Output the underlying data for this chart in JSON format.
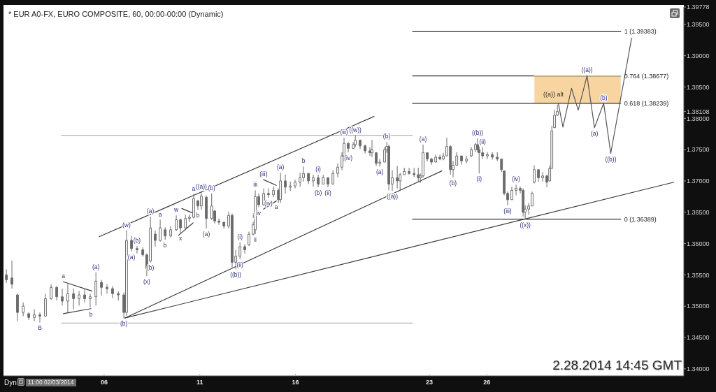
{
  "chart_data": {
    "type": "candlestick",
    "title": "* EUR A0-FX, EURO COMPOSITE, 60, 00:00-00:00 (Dynamic)",
    "color": "#6b6b6b",
    "xlim": [
      0.74,
      36.3
    ],
    "xticks": [
      {
        "value": 6,
        "label": "06"
      },
      11,
      16,
      23,
      26
    ],
    "ylim": [
      1.33886,
      1.39778
    ],
    "yticks": [
      {
        "value": 1.34,
        "label": "1.34000"
      },
      {
        "value": 1.345,
        "label": "1.34500"
      },
      {
        "value": 1.35,
        "label": "1.35000"
      },
      {
        "value": 1.355,
        "label": "1.35500"
      },
      {
        "value": 1.36,
        "label": "1.36000"
      },
      {
        "value": 1.365,
        "label": "1.36500"
      },
      {
        "value": 1.37,
        "label": "1.37000"
      },
      {
        "value": 1.375,
        "label": "1.37500"
      },
      {
        "value": 1.38,
        "label": "1.38000"
      },
      1.38108,
      {
        "value": 1.385,
        "label": "1.38500"
      },
      {
        "value": 1.39,
        "label": "1.39000"
      },
      {
        "value": 1.395,
        "label": "1.39500"
      },
      1.39778
    ],
    "x": [
      0.89,
      1.18,
      1.47,
      1.77,
      2.06,
      2.35,
      2.64,
      2.93,
      3.23,
      3.52,
      3.81,
      4.1,
      4.4,
      4.69,
      4.98,
      5.27,
      5.57,
      5.86,
      6.15,
      6.44,
      6.74,
      7.03,
      7.17,
      7.43,
      7.72,
      8.02,
      8.23,
      8.42,
      8.67,
      8.93,
      9.19,
      9.48,
      9.77,
      9.99,
      10.25,
      10.46,
      10.68,
      10.9,
      11.08,
      11.34,
      11.62,
      11.78,
      12,
      12.26,
      12.51,
      12.69,
      12.88,
      13.1,
      13.35,
      13.57,
      13.79,
      13.9,
      14.08,
      14.34,
      14.59,
      14.85,
      15.11,
      15.22,
      15.47,
      15.73,
      15.98,
      16.24,
      16.42,
      16.68,
      16.93,
      17.19,
      17.45,
      17.7,
      17.96,
      18.21,
      18.43,
      18.54,
      18.76,
      19.02,
      19.13,
      19.38,
      19.64,
      19.89,
      20,
      20.22,
      20.41,
      20.66,
      20.77,
      20.88,
      21.06,
      21.32,
      21.47,
      21.69,
      21.94,
      22.2,
      22.42,
      22.53,
      22.67,
      22.89,
      23.11,
      23.33,
      23.55,
      23.73,
      23.91,
      24.1,
      24.24,
      24.43,
      24.68,
      24.94,
      25.19,
      25.41,
      25.52,
      25.6,
      25.78,
      26.03,
      26.29,
      26.55,
      26.77,
      26.91,
      27.09,
      27.31,
      27.53,
      27.75,
      27.9,
      28.01,
      28.19,
      28.37,
      28.48,
      28.7,
      28.92,
      29.14,
      29.29,
      29.4,
      29.54,
      29.69
    ],
    "ohlc": [
      [
        1.355,
        1.3559,
        1.3537,
        1.3542
      ],
      [
        1.3545,
        1.3573,
        1.3528,
        1.3535
      ],
      [
        1.3518,
        1.352,
        1.3476,
        1.349
      ],
      [
        1.349,
        1.3506,
        1.3484,
        1.35
      ],
      [
        1.3488,
        1.349,
        1.3478,
        1.3482
      ],
      [
        1.3482,
        1.3495,
        1.3476,
        1.3486
      ],
      [
        1.3486,
        1.349,
        1.3474,
        1.3484
      ],
      [
        1.3484,
        1.352,
        1.3484,
        1.3512
      ],
      [
        1.3512,
        1.3535,
        1.351,
        1.353
      ],
      [
        1.353,
        1.3532,
        1.3509,
        1.3515
      ],
      [
        1.3515,
        1.3528,
        1.3501,
        1.3508
      ],
      [
        1.3508,
        1.3535,
        1.349,
        1.352
      ],
      [
        1.352,
        1.3528,
        1.3495,
        1.3512
      ],
      [
        1.3512,
        1.3524,
        1.3501,
        1.3518
      ],
      [
        1.3518,
        1.3528,
        1.3506,
        1.3512
      ],
      [
        1.3512,
        1.352,
        1.3498,
        1.3515
      ],
      [
        1.3515,
        1.3554,
        1.3501,
        1.354
      ],
      [
        1.3538,
        1.3542,
        1.3517,
        1.353
      ],
      [
        1.353,
        1.3535,
        1.352,
        1.3528
      ],
      [
        1.3528,
        1.3532,
        1.3513,
        1.352
      ],
      [
        1.352,
        1.3524,
        1.3509,
        1.3518
      ],
      [
        1.3518,
        1.3522,
        1.3481,
        1.349
      ],
      [
        1.349,
        1.3621,
        1.3485,
        1.3605
      ],
      [
        1.3605,
        1.3612,
        1.3587,
        1.3592
      ],
      [
        1.3592,
        1.3596,
        1.3584,
        1.359
      ],
      [
        1.359,
        1.3594,
        1.3579,
        1.3582
      ],
      [
        1.3582,
        1.3584,
        1.3548,
        1.356
      ],
      [
        1.3572,
        1.3643,
        1.357,
        1.3625
      ],
      [
        1.3615,
        1.3621,
        1.3595,
        1.3605
      ],
      [
        1.3605,
        1.3638,
        1.3603,
        1.3625
      ],
      [
        1.3622,
        1.3626,
        1.3606,
        1.3612
      ],
      [
        1.3612,
        1.3628,
        1.361,
        1.3622
      ],
      [
        1.3622,
        1.3645,
        1.362,
        1.3638
      ],
      [
        1.3638,
        1.364,
        1.3617,
        1.3625
      ],
      [
        1.3625,
        1.3646,
        1.3624,
        1.364
      ],
      [
        1.364,
        1.3646,
        1.3634,
        1.3642
      ],
      [
        1.3642,
        1.3679,
        1.364,
        1.3672
      ],
      [
        1.3668,
        1.367,
        1.3654,
        1.366
      ],
      [
        1.366,
        1.3682,
        1.3654,
        1.3676
      ],
      [
        1.3674,
        1.3677,
        1.3624,
        1.364
      ],
      [
        1.364,
        1.368,
        1.3638,
        1.366
      ],
      [
        1.3652,
        1.3654,
        1.3632,
        1.3636
      ],
      [
        1.3636,
        1.364,
        1.363,
        1.3634
      ],
      [
        1.3634,
        1.3635,
        1.3624,
        1.3628
      ],
      [
        1.3628,
        1.3651,
        1.3624,
        1.3645
      ],
      [
        1.3645,
        1.3648,
        1.3562,
        1.357
      ],
      [
        1.357,
        1.359,
        1.3559,
        1.358
      ],
      [
        1.358,
        1.3602,
        1.3575,
        1.3595
      ],
      [
        1.3595,
        1.3599,
        1.3584,
        1.359
      ],
      [
        1.3598,
        1.3619,
        1.3596,
        1.3615
      ],
      [
        1.3615,
        1.3635,
        1.3613,
        1.363
      ],
      [
        1.3622,
        1.3685,
        1.3615,
        1.3675
      ],
      [
        1.3675,
        1.368,
        1.3658,
        1.3662
      ],
      [
        1.3662,
        1.3688,
        1.366,
        1.368
      ],
      [
        1.368,
        1.3688,
        1.3673,
        1.3678
      ],
      [
        1.3678,
        1.3691,
        1.3674,
        1.3685
      ],
      [
        1.3685,
        1.3688,
        1.3665,
        1.367
      ],
      [
        1.367,
        1.3713,
        1.3665,
        1.37
      ],
      [
        1.37,
        1.371,
        1.368,
        1.369
      ],
      [
        1.369,
        1.3699,
        1.3684,
        1.3692
      ],
      [
        1.3692,
        1.3702,
        1.3688,
        1.3698
      ],
      [
        1.3698,
        1.3713,
        1.3691,
        1.3705
      ],
      [
        1.3705,
        1.3723,
        1.3699,
        1.3712
      ],
      [
        1.3712,
        1.3713,
        1.3695,
        1.37
      ],
      [
        1.37,
        1.371,
        1.3691,
        1.3705
      ],
      [
        1.3705,
        1.371,
        1.369,
        1.3695
      ],
      [
        1.3695,
        1.371,
        1.3695,
        1.3705
      ],
      [
        1.3705,
        1.3706,
        1.369,
        1.3695
      ],
      [
        1.3695,
        1.3717,
        1.3695,
        1.3712
      ],
      [
        1.3712,
        1.3728,
        1.3706,
        1.3722
      ],
      [
        1.3722,
        1.3746,
        1.3717,
        1.374
      ],
      [
        1.374,
        1.3769,
        1.3732,
        1.376
      ],
      [
        1.376,
        1.3762,
        1.3746,
        1.3752
      ],
      [
        1.3752,
        1.3762,
        1.3751,
        1.3758
      ],
      [
        1.3758,
        1.3773,
        1.3754,
        1.3765
      ],
      [
        1.3765,
        1.3766,
        1.3751,
        1.3756
      ],
      [
        1.3756,
        1.3758,
        1.3744,
        1.3748
      ],
      [
        1.3748,
        1.3754,
        1.374,
        1.3745
      ],
      [
        1.3745,
        1.3765,
        1.3738,
        1.375
      ],
      [
        1.3745,
        1.3746,
        1.3724,
        1.3728
      ],
      [
        1.3728,
        1.3735,
        1.3723,
        1.373
      ],
      [
        1.373,
        1.3754,
        1.373,
        1.375
      ],
      [
        1.375,
        1.3762,
        1.3745,
        1.3755
      ],
      [
        1.3755,
        1.3758,
        1.3685,
        1.3695
      ],
      [
        1.3695,
        1.3717,
        1.3684,
        1.3705
      ],
      [
        1.3705,
        1.3724,
        1.3688,
        1.37
      ],
      [
        1.37,
        1.3713,
        1.3684,
        1.371
      ],
      [
        1.371,
        1.3721,
        1.371,
        1.3715
      ],
      [
        1.3715,
        1.3721,
        1.371,
        1.3712
      ],
      [
        1.3712,
        1.3721,
        1.3706,
        1.371
      ],
      [
        1.371,
        1.3721,
        1.3699,
        1.3705
      ],
      [
        1.3705,
        1.3712,
        1.3697,
        1.3708
      ],
      [
        1.3708,
        1.3758,
        1.3705,
        1.3745
      ],
      [
        1.3745,
        1.3745,
        1.3731,
        1.3735
      ],
      [
        1.3735,
        1.3737,
        1.3726,
        1.373
      ],
      [
        1.373,
        1.3742,
        1.373,
        1.3738
      ],
      [
        1.3738,
        1.3742,
        1.3733,
        1.3735
      ],
      [
        1.3735,
        1.3745,
        1.3733,
        1.374
      ],
      [
        1.374,
        1.3769,
        1.374,
        1.3755
      ],
      [
        1.3755,
        1.3757,
        1.371,
        1.3718
      ],
      [
        1.3718,
        1.3732,
        1.3706,
        1.3725
      ],
      [
        1.3725,
        1.3746,
        1.3725,
        1.374
      ],
      [
        1.374,
        1.374,
        1.3726,
        1.3732
      ],
      [
        1.3732,
        1.374,
        1.3728,
        1.3735
      ],
      [
        1.374,
        1.3754,
        1.3738,
        1.375
      ],
      [
        1.375,
        1.3761,
        1.3746,
        1.3758
      ],
      [
        1.3758,
        1.3768,
        1.3746,
        1.375
      ],
      [
        1.375,
        1.3755,
        1.3712,
        1.3745
      ],
      [
        1.3745,
        1.3754,
        1.3735,
        1.374
      ],
      [
        1.374,
        1.3746,
        1.3735,
        1.3742
      ],
      [
        1.3742,
        1.3746,
        1.3734,
        1.3738
      ],
      [
        1.3738,
        1.3746,
        1.3732,
        1.3735
      ],
      [
        1.3735,
        1.3735,
        1.3714,
        1.3718
      ],
      [
        1.3716,
        1.3716,
        1.3677,
        1.368
      ],
      [
        1.368,
        1.3683,
        1.3661,
        1.367
      ],
      [
        1.367,
        1.3691,
        1.367,
        1.3685
      ],
      [
        1.3685,
        1.3694,
        1.3677,
        1.3688
      ],
      [
        1.3688,
        1.3691,
        1.368,
        1.3685
      ],
      [
        1.3685,
        1.3688,
        1.3643,
        1.365
      ],
      [
        1.365,
        1.3661,
        1.36389,
        1.3655
      ],
      [
        1.3655,
        1.3665,
        1.3646,
        1.366
      ],
      [
        1.366,
        1.3683,
        1.366,
        1.368
      ],
      [
        1.3698,
        1.3725,
        1.3696,
        1.3718
      ],
      [
        1.3718,
        1.3718,
        1.3699,
        1.3705
      ],
      [
        1.3705,
        1.3714,
        1.3699,
        1.3708
      ],
      [
        1.3708,
        1.371,
        1.369,
        1.3698
      ],
      [
        1.37,
        1.3725,
        1.3699,
        1.372
      ],
      [
        1.372,
        1.3788,
        1.372,
        1.378
      ],
      [
        1.3785,
        1.3814,
        1.3785,
        1.3805
      ],
      [
        1.3805,
        1.3822,
        1.3804,
        1.38108
      ]
    ],
    "series": [
      {
        "type": "line",
        "x": [
          3.76,
          22.12
        ],
        "values": [
          1.3773,
          1.3773
        ],
        "color": "#b3b3b3"
      },
      {
        "type": "line",
        "x": [
          3.76,
          22.12
        ],
        "values": [
          1.3473,
          1.3473
        ],
        "color": "#b3b3b3"
      },
      {
        "type": "line",
        "x": [
          5.74,
          20.11
        ],
        "values": [
          1.3611,
          1.3803
        ],
        "color": "#3a3a3a"
      },
      {
        "type": "line",
        "x": [
          7.08,
          23.65
        ],
        "values": [
          1.3481,
          1.3716
        ],
        "color": "#3a3a3a"
      },
      {
        "type": "line",
        "x": [
          7.08,
          35.78
        ],
        "values": [
          1.3481,
          1.3698
        ],
        "color": "#3a3a3a"
      },
      {
        "type": "line",
        "x": [
          3.87,
          5.37
        ],
        "values": [
          1.3539,
          1.3524
        ],
        "color": "#3a3a3a"
      },
      {
        "type": "line",
        "x": [
          3.87,
          5.31
        ],
        "values": [
          1.3488,
          1.3496
        ],
        "color": "#3a3a3a"
      },
      {
        "type": "line",
        "x": [
          10.06,
          10.61
        ],
        "values": [
          1.3656,
          1.3649
        ],
        "color": "#3a3a3a"
      },
      {
        "type": "line",
        "x": [
          9.88,
          10.65
        ],
        "values": [
          1.3613,
          1.3633
        ],
        "color": "#3a3a3a"
      },
      {
        "type": "line",
        "x": [
          14.33,
          15
        ],
        "values": [
          1.3702,
          1.3693
        ],
        "color": "#3a3a3a"
      },
      {
        "type": "line",
        "x": [
          14.33,
          15
        ],
        "values": [
          1.3655,
          1.3668
        ],
        "color": "#3a3a3a"
      },
      {
        "type": "line",
        "name": "1 (1.39383)",
        "x": [
          22.12,
          33
        ],
        "values": [
          1.39383,
          1.39383
        ],
        "color": "#333333"
      },
      {
        "type": "line",
        "name": "0.764 (1.38677)",
        "x": [
          22.12,
          33
        ],
        "values": [
          1.38677,
          1.38677
        ],
        "color": "#333333"
      },
      {
        "type": "line",
        "name": "0.618 (1.38239)",
        "x": [
          22.12,
          33
        ],
        "values": [
          1.38239,
          1.38239
        ],
        "color": "#333333"
      },
      {
        "type": "line",
        "name": "0 (1.36389)",
        "x": [
          22.12,
          33
        ],
        "values": [
          1.36389,
          1.36389
        ],
        "color": "#333333"
      },
      {
        "type": "line",
        "x": [
          28.49,
          33
        ],
        "values": [
          1.3868,
          1.3868
        ],
        "lower": [
          1.3824,
          1.3824
        ],
        "upper": [
          1.3868,
          1.3868
        ],
        "color": "#f2b860"
      },
      {
        "type": "line",
        "x": [
          29.74,
          29.98,
          30.43,
          30.78,
          31.24,
          31.63,
          32.11,
          32.48,
          33.57
        ],
        "values": [
          1.3824,
          1.3786,
          1.3848,
          1.3813,
          1.3868,
          1.3785,
          1.3824,
          1.3744,
          1.3928
        ],
        "color": "#555555"
      }
    ],
    "annotations": [
      "Dyn",
      "11:00 02/03/2014",
      "2.28.2014 14:45 GMT",
      "((a)) alt",
      {
        "text": "a",
        "x": 3.87,
        "y": 1.3539
      },
      {
        "text": "(a)",
        "x": 5.57,
        "y": 1.3554
      },
      {
        "text": "b",
        "x": 5.31,
        "y": 1.3496
      },
      {
        "text": "B",
        "x": 2.64,
        "y": 1.3474
      },
      {
        "text": "(b)",
        "x": 7.03,
        "y": 1.3481
      },
      {
        "text": "(w)",
        "x": 7.17,
        "y": 1.3621
      },
      {
        "text": "(a)",
        "x": 8.42,
        "y": 1.3643
      },
      {
        "text": "(a)",
        "x": 7.43,
        "y": 1.3587
      },
      {
        "text": "(b)",
        "x": 7.72,
        "y": 1.3596
      },
      {
        "text": "(x)",
        "x": 8.23,
        "y": 1.3548
      },
      {
        "text": "(b)",
        "x": 8.42,
        "y": 1.357
      },
      {
        "text": "a",
        "x": 8.93,
        "y": 1.3638
      },
      {
        "text": "b",
        "x": 9.19,
        "y": 1.3606
      },
      {
        "text": "w",
        "x": 9.77,
        "y": 1.3645
      },
      {
        "text": "x",
        "x": 9.99,
        "y": 1.3617
      },
      {
        "text": "a",
        "x": 10.68,
        "y": 1.3679
      },
      {
        "text": "b",
        "x": 10.9,
        "y": 1.3654
      },
      {
        "text": "((a))",
        "x": 11.08,
        "y": 1.3682
      },
      {
        "text": "(b)",
        "x": 11.62,
        "y": 1.368
      },
      {
        "text": "(a)",
        "x": 11.34,
        "y": 1.3624
      },
      {
        "text": "(i)",
        "x": 13.1,
        "y": 1.3602
      },
      {
        "text": "((b))",
        "x": 12.88,
        "y": 1.3559
      },
      {
        "text": "(ii)",
        "x": 13.1,
        "y": 1.3575
      },
      {
        "text": "i",
        "x": 13.79,
        "y": 1.3635
      },
      {
        "text": "ii",
        "x": 13.9,
        "y": 1.3615
      },
      {
        "text": "iii",
        "x": 13.9,
        "y": 1.3685
      },
      {
        "text": "(iii)",
        "x": 14.33,
        "y": 1.3702
      },
      {
        "text": "iv",
        "x": 14.08,
        "y": 1.3658
      },
      {
        "text": "(iv)",
        "x": 14.59,
        "y": 1.3673
      },
      {
        "text": "a",
        "x": 15,
        "y": 1.3668
      },
      {
        "text": "(a)",
        "x": 15.22,
        "y": 1.3713
      },
      {
        "text": "b",
        "x": 16.42,
        "y": 1.3723
      },
      {
        "text": "(i)",
        "x": 17.19,
        "y": 1.371
      },
      {
        "text": "(b)",
        "x": 17.19,
        "y": 1.369
      },
      {
        "text": "(ii)",
        "x": 17.7,
        "y": 1.369
      },
      {
        "text": "(iii)",
        "x": 18.54,
        "y": 1.3769
      },
      {
        "text": "((w))",
        "x": 19.13,
        "y": 1.3773
      },
      {
        "text": "(iv)",
        "x": 18.76,
        "y": 1.3746
      },
      {
        "text": "(a)",
        "x": 20.41,
        "y": 1.3723
      },
      {
        "text": "(b)",
        "x": 20.77,
        "y": 1.3762
      },
      {
        "text": "((a))",
        "x": 21.06,
        "y": 1.3684
      },
      {
        "text": "(a)",
        "x": 22.67,
        "y": 1.3758
      },
      {
        "text": "(b)",
        "x": 24.24,
        "y": 1.3706
      },
      {
        "text": "((b))",
        "x": 25.52,
        "y": 1.3768
      },
      {
        "text": "(ii)",
        "x": 25.78,
        "y": 1.3754
      },
      {
        "text": "(i)",
        "x": 25.6,
        "y": 1.3712
      },
      {
        "text": "(iii)",
        "x": 27.09,
        "y": 1.3661
      },
      {
        "text": "(iv)",
        "x": 27.53,
        "y": 1.3694
      },
      {
        "text": "((x))",
        "x": 28.01,
        "y": 1.36389
      },
      {
        "text": "((a))",
        "x": 31.24,
        "y": 1.3868
      },
      {
        "text": "(b)",
        "x": 32.11,
        "y": 1.3824
      },
      {
        "text": "(a)",
        "x": 31.63,
        "y": 1.3785
      },
      {
        "text": "((b))",
        "x": 32.48,
        "y": 1.3744
      }
    ]
  }
}
